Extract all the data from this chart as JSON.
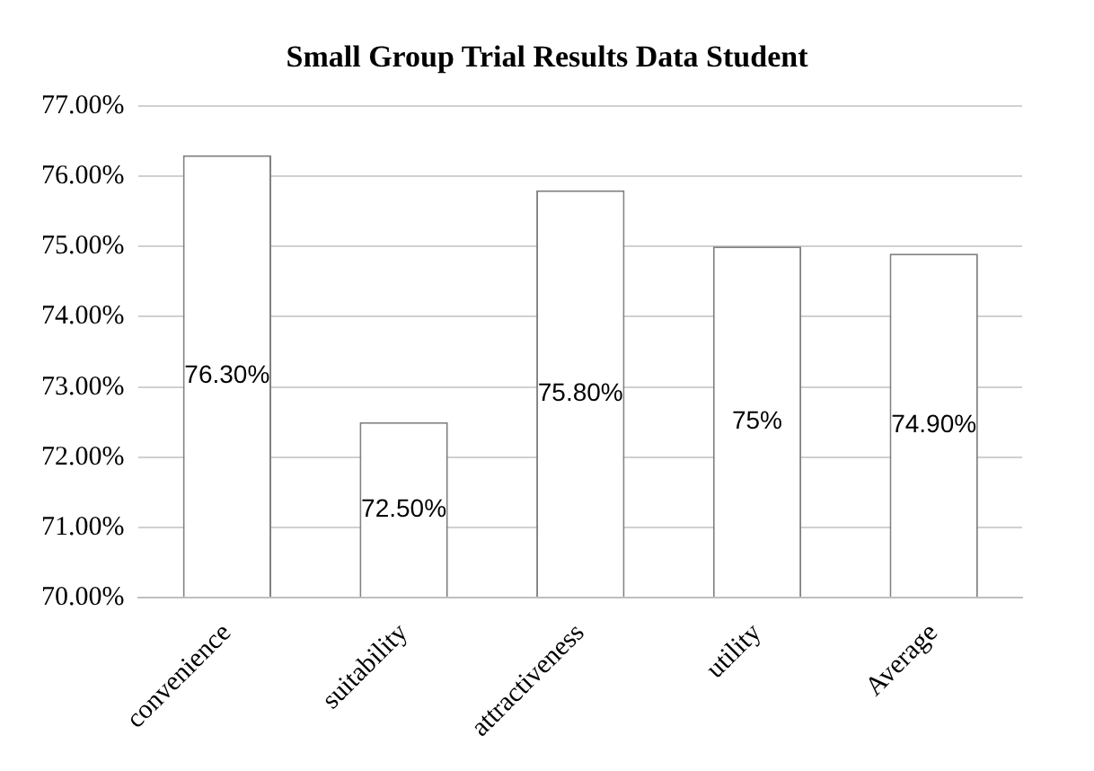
{
  "chart_data": {
    "type": "bar",
    "title": "Small Group Trial Results Data Student",
    "categories": [
      "convenience",
      "suitability",
      "attractiveness",
      "utility",
      "Average"
    ],
    "values": [
      76.3,
      72.5,
      75.8,
      75,
      74.9
    ],
    "value_labels": [
      "76.30%",
      "72.50%",
      "75.80%",
      "75%",
      "74.90%"
    ],
    "color": "#ffffff",
    "ylim": [
      70,
      77
    ],
    "yticks": [
      {
        "value": 70,
        "label": "70.00%"
      },
      {
        "value": 71,
        "label": "71.00%"
      },
      {
        "value": 72,
        "label": "72.00%"
      },
      {
        "value": 73,
        "label": "73.00%"
      },
      {
        "value": 74,
        "label": "74.00%"
      },
      {
        "value": 75,
        "label": "75.00%"
      },
      {
        "value": 76,
        "label": "76.00%"
      },
      {
        "value": 77,
        "label": "77.00%"
      }
    ],
    "grid": "y",
    "legend": false
  }
}
